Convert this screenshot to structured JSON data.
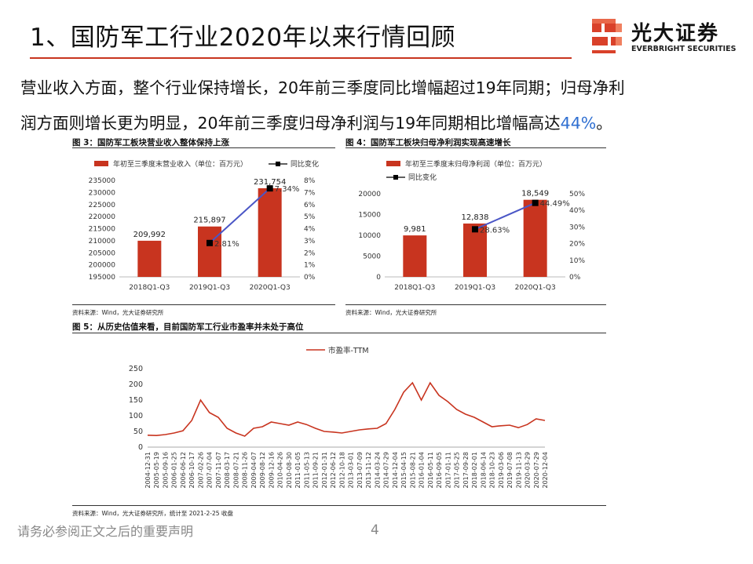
{
  "header": {
    "title": "1、国防军工行业2020年以来行情回顾",
    "logo_cn": "光大证券",
    "logo_en": "EVERBRIGHT SECURITIES"
  },
  "body": {
    "para1": "营业收入方面，整个行业保持增长，20年前三季度同比增幅超过19年同期；归母净利",
    "para2_pre": "润方面则增长更为明显，20年前三季度归母净利润与19年同期相比增幅高达",
    "para2_hl": "44%",
    "para2_post": "。"
  },
  "fig3": {
    "title": "图 3：国防军工板块营业收入整体保持上涨",
    "source": "资料来源：Wind，光大证券研究所"
  },
  "fig4": {
    "title": "图 4：国防军工板块归母净利润实现高速增长",
    "source": "资料来源：Wind，光大证券研究所"
  },
  "fig5": {
    "title": "图 5：从历史估值来看，目前国防军工行业市盈率并未处于高位",
    "source": "资料来源：Wind，光大证券研究所，统计至 2021-2-25 收盘"
  },
  "footer": {
    "disclaimer": "请务必参阅正文之后的重要声明",
    "page": "4"
  },
  "colors": {
    "accent": "#c8341f",
    "bar": "#c8341f",
    "line": "#4a56c6",
    "highlight": "#2f6fd1"
  },
  "chart_data": [
    {
      "type": "bar",
      "legend": [
        "年初至三季度末营业收入（单位：百万元）",
        "同比变化"
      ],
      "categories": [
        "2018Q1-Q3",
        "2019Q1-Q3",
        "2020Q1-Q3"
      ],
      "series": [
        {
          "name": "年初至三季度末营业收入（单位：百万元）",
          "values": [
            209992,
            215897,
            231754
          ],
          "labels": [
            "209,992",
            "215,897",
            "231,754"
          ]
        },
        {
          "name": "同比变化",
          "values": [
            null,
            2.81,
            7.34
          ],
          "labels": [
            "",
            "2.81%",
            "7.34%"
          ]
        }
      ],
      "ylim": [
        195000,
        235000
      ],
      "yticks": [
        "195000",
        "200000",
        "205000",
        "210000",
        "215000",
        "220000",
        "225000",
        "230000",
        "235000"
      ],
      "y2lim": [
        0,
        8
      ],
      "y2ticks": [
        "0%",
        "1%",
        "2%",
        "3%",
        "4%",
        "5%",
        "6%",
        "7%",
        "8%"
      ],
      "legend_position": "top"
    },
    {
      "type": "bar",
      "legend": [
        "年初至三季度末归母净利润（单位：百万元）",
        "同比变化"
      ],
      "categories": [
        "2018Q1-Q3",
        "2019Q1-Q3",
        "2020Q1-Q3"
      ],
      "series": [
        {
          "name": "年初至三季度末归母净利润（单位：百万元）",
          "values": [
            9981,
            12838,
            18549
          ],
          "labels": [
            "9,981",
            "12,838",
            "18,549"
          ]
        },
        {
          "name": "同比变化",
          "values": [
            null,
            28.63,
            44.49
          ],
          "labels": [
            "",
            "28.63%",
            "44.49%"
          ]
        }
      ],
      "ylim": [
        0,
        20000
      ],
      "yticks": [
        "0",
        "5000",
        "10000",
        "15000",
        "20000"
      ],
      "y2lim": [
        0,
        50
      ],
      "y2ticks": [
        "0%",
        "10%",
        "20%",
        "30%",
        "40%",
        "50%"
      ],
      "legend_position": "top-left"
    },
    {
      "type": "line",
      "legend": [
        "市盈率-TTM"
      ],
      "series": [
        {
          "name": "市盈率-TTM",
          "x": [
            "2004-12-31",
            "2005-05-19",
            "2005-09-16",
            "2006-01-25",
            "2006-06-12",
            "2006-10-17",
            "2007-02-26",
            "2007-07-04",
            "2007-11-07",
            "2008-03-17",
            "2008-07-21",
            "2008-11-26",
            "2009-04-07",
            "2009-08-12",
            "2009-12-16",
            "2010-04-26",
            "2010-08-30",
            "2011-01-05",
            "2011-05-13",
            "2011-09-21",
            "2012-01-31",
            "2012-06-12",
            "2012-10-18",
            "2013-03-01",
            "2013-07-09",
            "2013-11-12",
            "2014-03-24",
            "2014-07-29",
            "2014-12-04",
            "2015-04-15",
            "2015-08-21",
            "2016-01-04",
            "2016-05-11",
            "2016-09-05",
            "2017-01-11",
            "2017-05-25",
            "2017-09-28",
            "2018-02-01",
            "2018-06-14",
            "2018-10-23",
            "2019-03-06",
            "2019-07-08",
            "2019-11-13",
            "2020-03-29",
            "2020-07-29",
            "2020-12-04"
          ],
          "values": [
            38,
            37,
            40,
            45,
            52,
            85,
            150,
            110,
            95,
            60,
            45,
            35,
            60,
            65,
            80,
            75,
            70,
            80,
            72,
            60,
            50,
            48,
            45,
            50,
            55,
            58,
            60,
            75,
            120,
            175,
            205,
            150,
            205,
            165,
            145,
            120,
            105,
            95,
            80,
            65,
            68,
            70,
            62,
            72,
            90,
            85
          ]
        }
      ],
      "ylim": [
        0,
        250
      ],
      "yticks": [
        "0",
        "50",
        "100",
        "150",
        "200",
        "250"
      ],
      "legend_position": "top"
    }
  ]
}
